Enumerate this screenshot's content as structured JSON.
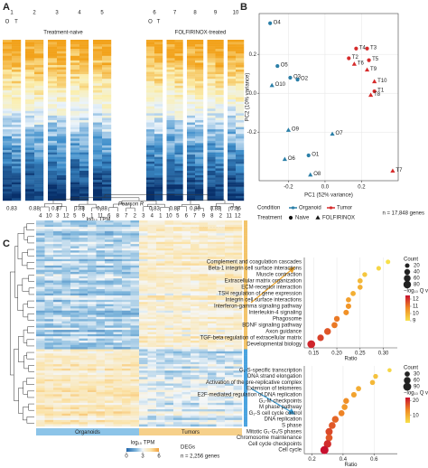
{
  "figure": {
    "panel_a": {
      "label": "A",
      "groups": [
        "Treatment-naive",
        "FOLFIRINOX-treated"
      ],
      "patients": [
        1,
        2,
        3,
        4,
        5,
        6,
        7,
        8,
        9,
        10
      ],
      "sample_letters": [
        "O",
        "T"
      ],
      "pearson_label": "Pearson R",
      "pearson_r": [
        0.83,
        0.88,
        0.87,
        0.88,
        0.88,
        0.83,
        0.88,
        0.88,
        0.88,
        0.86
      ],
      "colorbar": {
        "title": "log₁₀ TPM",
        "ticks": [
          0,
          3,
          6
        ]
      },
      "n_genes": "n = 17,848 genes"
    },
    "panel_b": {
      "label": "B",
      "n_genes": "n = 17,848 genes"
    },
    "panel_c": {
      "label": "C",
      "organoid_columns": [
        4,
        10,
        3,
        12,
        5,
        9,
        1,
        11,
        6,
        8,
        7,
        2
      ],
      "tumor_columns": [
        3,
        4,
        1,
        10,
        5,
        6,
        7,
        9,
        8,
        2,
        11,
        12
      ],
      "groups": [
        "Organoids",
        "Tumors"
      ],
      "colorbar": {
        "title": "log₁₀ TPM",
        "ticks": [
          0,
          3,
          6
        ]
      },
      "deg_title": "DEGs",
      "n_genes": "n = 2,256 genes"
    }
  },
  "chart_data": [
    {
      "type": "scatter",
      "xlabel": "PC1 (52% variance)",
      "ylabel": "PC2 (10% variance)",
      "xlim": [
        -0.36,
        0.4
      ],
      "ylim": [
        -0.45,
        0.41
      ],
      "xticks": [
        -0.2,
        {
          "value": 0,
          "label": "0.0"
        },
        0.2
      ],
      "yticks": [
        -0.2,
        {
          "value": 0,
          "label": "0.0"
        },
        0.2
      ],
      "legend_titles": {
        "condition": "Condition",
        "treatment": "Treatment"
      },
      "series": [
        {
          "condition": "Organoid",
          "treatment": "Naive",
          "color": "#2b7fa8",
          "marker": "circle",
          "labels": [
            "O1",
            "O2",
            "O3",
            "O4",
            "O5"
          ],
          "x": [
            -0.09,
            -0.15,
            -0.19,
            -0.3,
            -0.26
          ],
          "values": [
            -0.32,
            0.07,
            0.08,
            0.36,
            0.14
          ]
        },
        {
          "condition": "Organoid",
          "treatment": "FOLFIRINOX",
          "color": "#2b7fa8",
          "marker": "triangle",
          "labels": [
            "O6",
            "O7",
            "O8",
            "O9",
            "O10"
          ],
          "x": [
            -0.22,
            0.04,
            -0.08,
            -0.2,
            -0.29
          ],
          "values": [
            -0.34,
            -0.21,
            -0.42,
            -0.19,
            0.04
          ]
        },
        {
          "condition": "Tumor",
          "treatment": "Naive",
          "color": "#d62b2b",
          "marker": "circle",
          "labels": [
            "T1",
            "T2",
            "T3",
            "T4",
            "T5"
          ],
          "x": [
            0.27,
            0.13,
            0.23,
            0.17,
            0.24
          ],
          "values": [
            0.01,
            0.18,
            0.23,
            0.23,
            0.17
          ]
        },
        {
          "condition": "Tumor",
          "treatment": "FOLFIRINOX",
          "color": "#d62b2b",
          "marker": "triangle",
          "labels": [
            "T6",
            "T7",
            "T8",
            "T9",
            "T10"
          ],
          "x": [
            0.16,
            0.37,
            0.25,
            0.23,
            0.27
          ],
          "values": [
            0.15,
            -0.4,
            -0.01,
            0.12,
            0.06
          ]
        }
      ]
    },
    {
      "type": "dot",
      "xlabel": "Ratio",
      "xlim": [
        0.13,
        0.33
      ],
      "xticks": [
        0.15,
        {
          "value": 0.2,
          "label": "0.20"
        },
        0.25,
        {
          "value": 0.3,
          "label": "0.30"
        }
      ],
      "categories": [
        "Complement and coagulation cascades",
        "Beta-1 integrin cell surface interactions",
        "Muscle contraction",
        "Extracellular matrix organization",
        "ECM-receptor interaction",
        "TSH regulation of gene expression",
        "Integrin cell surface interactions",
        "Interferon-gamma signaling pathway",
        "Interleukin-4 signaling",
        "Phagosome",
        "BDNF signaling pathway",
        "Axon guidance",
        "TGF-beta regulation of extracellular matrix",
        "Developmental biology"
      ],
      "values": [
        0.31,
        0.29,
        0.26,
        0.25,
        0.25,
        0.235,
        0.225,
        0.225,
        0.22,
        0.2,
        0.195,
        0.18,
        0.165,
        0.145
      ],
      "counts": [
        20,
        22,
        25,
        30,
        28,
        30,
        30,
        35,
        35,
        40,
        45,
        60,
        55,
        85
      ],
      "qvalues": [
        9,
        9.2,
        9.5,
        9.8,
        10,
        10,
        10.3,
        10.5,
        10.6,
        11,
        11,
        11.5,
        11.8,
        12.2
      ],
      "size_legend": {
        "title": "Count",
        "values": [
          20,
          40,
          60,
          80
        ]
      },
      "color_legend": {
        "title": "−log₁₀ Q value",
        "lim": [
          9,
          12.5
        ],
        "ticks": [
          12,
          11,
          10,
          9
        ]
      }
    },
    {
      "type": "dot",
      "xlabel": "Ratio",
      "xlim": [
        0.15,
        0.75
      ],
      "xticks": [
        0.2,
        0.4,
        0.6
      ],
      "categories": [
        "G₁-S-specific transcription",
        "DNA strand elongation",
        "Activation of the pre-replicative complex",
        "Extension of telomeres",
        "E2F-mediated regulation of DNA replication",
        "G₂-M checkpoints",
        "M phase pathway",
        "G₁-S cell cycle control",
        "DNA replication",
        "S phase",
        "Mitotic G₁-G₁/S phases",
        "Chromosome maintenance",
        "Cell cycle checkpoints",
        "Cell cycle"
      ],
      "values": [
        0.7,
        0.61,
        0.59,
        0.5,
        0.47,
        0.42,
        0.41,
        0.39,
        0.35,
        0.33,
        0.31,
        0.31,
        0.3,
        0.28
      ],
      "counts": [
        15,
        25,
        28,
        30,
        35,
        40,
        42,
        45,
        60,
        62,
        70,
        65,
        80,
        95
      ],
      "qvalues": [
        6,
        8,
        9,
        10,
        11,
        13,
        12,
        14,
        16,
        17,
        18,
        17,
        20,
        22
      ],
      "size_legend": {
        "title": "Count",
        "values": [
          30,
          60,
          90
        ]
      },
      "color_legend": {
        "title": "−log₁₀ Q value",
        "lim": [
          5,
          22
        ],
        "ticks": [
          20,
          10
        ]
      }
    }
  ]
}
